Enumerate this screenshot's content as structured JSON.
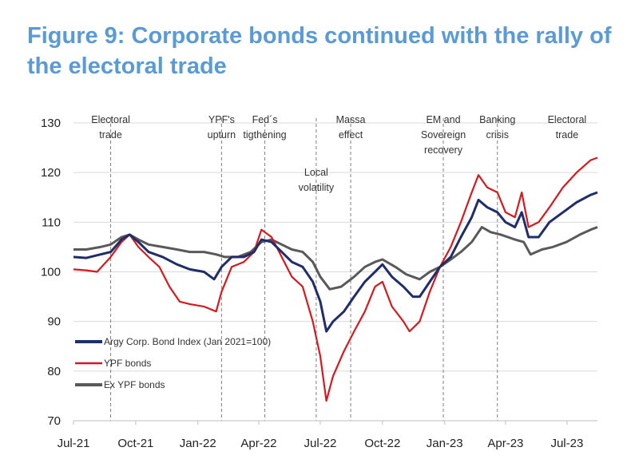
{
  "title": "Figure 9: Corporate bonds continued with the rally of the electoral trade",
  "chart_data": {
    "type": "line",
    "title": "Figure 9: Corporate bonds continued with the rally of the electoral trade",
    "xlabel": "",
    "ylabel": "",
    "ylim": [
      70,
      130
    ],
    "yticks": [
      70,
      80,
      90,
      100,
      110,
      120,
      130
    ],
    "xlim": [
      "2021-07-01",
      "2023-08-15"
    ],
    "xticks": [
      {
        "date": "2021-07-01",
        "label": "Jul-21"
      },
      {
        "date": "2021-10-01",
        "label": "Oct-21"
      },
      {
        "date": "2022-01-01",
        "label": "Jan-22"
      },
      {
        "date": "2022-04-01",
        "label": "Apr-22"
      },
      {
        "date": "2022-07-01",
        "label": "Jul-22"
      },
      {
        "date": "2022-10-01",
        "label": "Oct-22"
      },
      {
        "date": "2023-01-01",
        "label": "Jan-23"
      },
      {
        "date": "2023-04-01",
        "label": "Apr-23"
      },
      {
        "date": "2023-07-01",
        "label": "Jul-23"
      }
    ],
    "grid": "horizontal",
    "legend_position": "bottom-left",
    "events": [
      {
        "date": "2021-08-25",
        "label": [
          "Electoral",
          "trade"
        ]
      },
      {
        "date": "2022-02-05",
        "label": [
          "YPF's",
          "upturn"
        ]
      },
      {
        "date": "2022-04-10",
        "label": [
          "Fed´s",
          "tigthening"
        ]
      },
      {
        "date": "2022-06-25",
        "label": [
          "Local",
          "volatility"
        ]
      },
      {
        "date": "2022-08-15",
        "label": [
          "Massa",
          "effect"
        ]
      },
      {
        "date": "2022-12-30",
        "label": [
          "EM and",
          "Sovereign",
          "recovery"
        ]
      },
      {
        "date": "2023-03-20",
        "label": [
          "Banking",
          "crisis"
        ]
      }
    ],
    "series": [
      {
        "name": "Argy Corp. Bond Index (Jan 2021=100)",
        "color": "#1f2d6b",
        "points": [
          [
            "2021-07-01",
            103
          ],
          [
            "2021-07-20",
            102.8
          ],
          [
            "2021-08-10",
            103.5
          ],
          [
            "2021-08-25",
            104
          ],
          [
            "2021-09-10",
            106.5
          ],
          [
            "2021-09-22",
            107.5
          ],
          [
            "2021-10-05",
            106
          ],
          [
            "2021-10-20",
            104
          ],
          [
            "2021-11-10",
            103
          ],
          [
            "2021-12-01",
            101.5
          ],
          [
            "2021-12-20",
            100.5
          ],
          [
            "2022-01-10",
            100
          ],
          [
            "2022-01-25",
            98.5
          ],
          [
            "2022-02-05",
            101
          ],
          [
            "2022-02-20",
            103
          ],
          [
            "2022-03-10",
            103
          ],
          [
            "2022-03-25",
            104
          ],
          [
            "2022-04-05",
            106.5
          ],
          [
            "2022-04-20",
            106
          ],
          [
            "2022-05-05",
            104
          ],
          [
            "2022-05-20",
            102
          ],
          [
            "2022-06-05",
            101
          ],
          [
            "2022-06-20",
            98
          ],
          [
            "2022-07-01",
            94
          ],
          [
            "2022-07-10",
            88
          ],
          [
            "2022-07-20",
            90
          ],
          [
            "2022-08-05",
            92
          ],
          [
            "2022-08-20",
            95
          ],
          [
            "2022-09-05",
            98
          ],
          [
            "2022-09-20",
            100
          ],
          [
            "2022-10-01",
            101.5
          ],
          [
            "2022-10-15",
            99
          ],
          [
            "2022-11-01",
            97
          ],
          [
            "2022-11-15",
            95
          ],
          [
            "2022-11-25",
            95
          ],
          [
            "2022-12-10",
            98
          ],
          [
            "2022-12-25",
            101
          ],
          [
            "2023-01-10",
            103
          ],
          [
            "2023-01-25",
            107
          ],
          [
            "2023-02-10",
            111
          ],
          [
            "2023-02-20",
            114.5
          ],
          [
            "2023-03-05",
            113
          ],
          [
            "2023-03-20",
            112
          ],
          [
            "2023-04-01",
            110
          ],
          [
            "2023-04-15",
            109
          ],
          [
            "2023-04-25",
            112
          ],
          [
            "2023-05-05",
            107
          ],
          [
            "2023-05-20",
            107
          ],
          [
            "2023-06-05",
            110
          ],
          [
            "2023-06-25",
            112
          ],
          [
            "2023-07-15",
            114
          ],
          [
            "2023-08-05",
            115.5
          ],
          [
            "2023-08-15",
            116
          ]
        ]
      },
      {
        "name": "YPF bonds",
        "color": "#d6191f",
        "points": [
          [
            "2021-07-01",
            100.5
          ],
          [
            "2021-07-20",
            100.3
          ],
          [
            "2021-08-05",
            100
          ],
          [
            "2021-08-25",
            103
          ],
          [
            "2021-09-10",
            106
          ],
          [
            "2021-09-22",
            107.5
          ],
          [
            "2021-10-05",
            105
          ],
          [
            "2021-10-20",
            103
          ],
          [
            "2021-11-05",
            101
          ],
          [
            "2021-11-20",
            97
          ],
          [
            "2021-12-05",
            94
          ],
          [
            "2021-12-20",
            93.5
          ],
          [
            "2022-01-10",
            93
          ],
          [
            "2022-01-28",
            92
          ],
          [
            "2022-02-05",
            96
          ],
          [
            "2022-02-20",
            101
          ],
          [
            "2022-03-10",
            102
          ],
          [
            "2022-03-25",
            104
          ],
          [
            "2022-04-05",
            108.5
          ],
          [
            "2022-04-20",
            107
          ],
          [
            "2022-05-05",
            103
          ],
          [
            "2022-05-20",
            99
          ],
          [
            "2022-06-05",
            97
          ],
          [
            "2022-06-20",
            90
          ],
          [
            "2022-07-01",
            83
          ],
          [
            "2022-07-10",
            74
          ],
          [
            "2022-07-20",
            79
          ],
          [
            "2022-08-05",
            84
          ],
          [
            "2022-08-20",
            88
          ],
          [
            "2022-09-05",
            92
          ],
          [
            "2022-09-20",
            97
          ],
          [
            "2022-10-01",
            98
          ],
          [
            "2022-10-15",
            93
          ],
          [
            "2022-11-01",
            90
          ],
          [
            "2022-11-10",
            88
          ],
          [
            "2022-11-25",
            90
          ],
          [
            "2022-12-10",
            96
          ],
          [
            "2022-12-25",
            101
          ],
          [
            "2023-01-10",
            105
          ],
          [
            "2023-01-25",
            110
          ],
          [
            "2023-02-10",
            116
          ],
          [
            "2023-02-20",
            119.5
          ],
          [
            "2023-03-05",
            117
          ],
          [
            "2023-03-20",
            116
          ],
          [
            "2023-04-01",
            112
          ],
          [
            "2023-04-15",
            111
          ],
          [
            "2023-04-25",
            116
          ],
          [
            "2023-05-05",
            109
          ],
          [
            "2023-05-20",
            110
          ],
          [
            "2023-06-05",
            113
          ],
          [
            "2023-06-25",
            117
          ],
          [
            "2023-07-15",
            120
          ],
          [
            "2023-08-05",
            122.5
          ],
          [
            "2023-08-15",
            123
          ]
        ]
      },
      {
        "name": "Ex YPF bonds",
        "color": "#595959",
        "points": [
          [
            "2021-07-01",
            104.5
          ],
          [
            "2021-07-20",
            104.5
          ],
          [
            "2021-08-10",
            105
          ],
          [
            "2021-08-25",
            105.5
          ],
          [
            "2021-09-10",
            107
          ],
          [
            "2021-09-22",
            107.5
          ],
          [
            "2021-10-05",
            106.5
          ],
          [
            "2021-10-20",
            105.5
          ],
          [
            "2021-11-10",
            105
          ],
          [
            "2021-12-01",
            104.5
          ],
          [
            "2021-12-20",
            104
          ],
          [
            "2022-01-10",
            104
          ],
          [
            "2022-01-28",
            103.5
          ],
          [
            "2022-02-10",
            103
          ],
          [
            "2022-03-01",
            103
          ],
          [
            "2022-03-20",
            104
          ],
          [
            "2022-04-05",
            106
          ],
          [
            "2022-04-20",
            106.5
          ],
          [
            "2022-05-05",
            105.5
          ],
          [
            "2022-05-20",
            104.5
          ],
          [
            "2022-06-05",
            104
          ],
          [
            "2022-06-20",
            102
          ],
          [
            "2022-07-01",
            99
          ],
          [
            "2022-07-15",
            96.5
          ],
          [
            "2022-08-01",
            97
          ],
          [
            "2022-08-20",
            99
          ],
          [
            "2022-09-05",
            101
          ],
          [
            "2022-09-20",
            102
          ],
          [
            "2022-10-01",
            102.5
          ],
          [
            "2022-10-20",
            101
          ],
          [
            "2022-11-05",
            99.5
          ],
          [
            "2022-11-25",
            98.5
          ],
          [
            "2022-12-10",
            100
          ],
          [
            "2022-12-25",
            101
          ],
          [
            "2023-01-10",
            102.5
          ],
          [
            "2023-01-25",
            104
          ],
          [
            "2023-02-10",
            106
          ],
          [
            "2023-02-25",
            109
          ],
          [
            "2023-03-10",
            108
          ],
          [
            "2023-03-25",
            107.5
          ],
          [
            "2023-04-15",
            106.5
          ],
          [
            "2023-04-28",
            106
          ],
          [
            "2023-05-08",
            103.5
          ],
          [
            "2023-05-25",
            104.5
          ],
          [
            "2023-06-10",
            105
          ],
          [
            "2023-06-30",
            106
          ],
          [
            "2023-07-20",
            107.5
          ],
          [
            "2023-08-05",
            108.5
          ],
          [
            "2023-08-15",
            109
          ]
        ]
      }
    ],
    "extra_labels": [
      {
        "date": "2023-07-01",
        "label": [
          "Electoral",
          "trade"
        ]
      }
    ]
  }
}
